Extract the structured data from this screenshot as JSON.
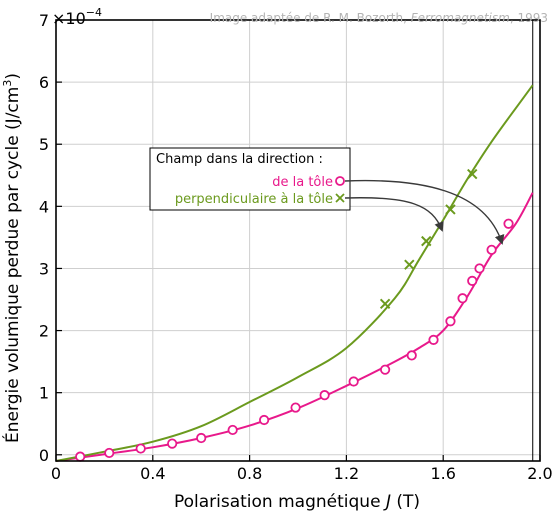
{
  "chart_data": {
    "type": "scatter",
    "xlabel_prefix": "Polarisation magnétique ",
    "xlabel_var": "J",
    "xlabel_unit": " (T)",
    "ylabel_main": "Énergie volumique perdue par cycle (J/cm",
    "ylabel_sup": "3",
    "ylabel_close": ")",
    "y_multiplier_base": "×10",
    "y_multiplier_exp": "−4",
    "credit_prefix": "Image adaptée de R. M. Bozorth, ",
    "credit_title": "Ferromagnetism",
    "credit_suffix": ", 1993",
    "xlim": [
      0,
      2.0
    ],
    "ylim": [
      -0.1,
      7
    ],
    "x_ticks": [
      0,
      0.4,
      0.8,
      1.2,
      1.6,
      2.0
    ],
    "x_tick_labels": [
      "0",
      "0.4",
      "0.8",
      "1.2",
      "1.6",
      "2.0"
    ],
    "y_ticks": [
      0,
      1,
      2,
      3,
      4,
      5,
      6,
      7
    ],
    "y_tick_labels": [
      "0",
      "1",
      "2",
      "3",
      "4",
      "5",
      "6",
      "7"
    ],
    "grid": true,
    "vertical_line_x": 1.97,
    "legend": {
      "title": "Champ dans la direction :",
      "placement": "center-left"
    },
    "series": [
      {
        "name": "de la tôle",
        "color": "#e8198b",
        "marker": "circle",
        "points": [
          [
            0.1,
            -0.03
          ],
          [
            0.22,
            0.03
          ],
          [
            0.35,
            0.1
          ],
          [
            0.48,
            0.18
          ],
          [
            0.6,
            0.27
          ],
          [
            0.73,
            0.4
          ],
          [
            0.86,
            0.56
          ],
          [
            0.99,
            0.76
          ],
          [
            1.11,
            0.96
          ],
          [
            1.23,
            1.18
          ],
          [
            1.36,
            1.37
          ],
          [
            1.47,
            1.6
          ],
          [
            1.56,
            1.85
          ],
          [
            1.63,
            2.15
          ],
          [
            1.68,
            2.52
          ],
          [
            1.72,
            2.8
          ],
          [
            1.75,
            3.0
          ],
          [
            1.8,
            3.3
          ],
          [
            1.87,
            3.72
          ]
        ],
        "fit": [
          [
            0.0,
            -0.1
          ],
          [
            0.2,
            0.01
          ],
          [
            0.4,
            0.12
          ],
          [
            0.6,
            0.27
          ],
          [
            0.8,
            0.47
          ],
          [
            1.0,
            0.75
          ],
          [
            1.2,
            1.11
          ],
          [
            1.4,
            1.5
          ],
          [
            1.5,
            1.72
          ],
          [
            1.6,
            2.0
          ],
          [
            1.7,
            2.55
          ],
          [
            1.8,
            3.22
          ],
          [
            1.9,
            3.72
          ],
          [
            1.97,
            4.22
          ]
        ]
      },
      {
        "name": "perpendiculaire à la tôle",
        "color": "#6b9a1e",
        "marker": "cross",
        "points": [
          [
            1.36,
            2.43
          ],
          [
            1.46,
            3.06
          ],
          [
            1.53,
            3.44
          ],
          [
            1.63,
            3.95
          ],
          [
            1.72,
            4.52
          ]
        ],
        "fit": [
          [
            0.0,
            -0.1
          ],
          [
            0.2,
            0.05
          ],
          [
            0.4,
            0.21
          ],
          [
            0.6,
            0.46
          ],
          [
            0.8,
            0.85
          ],
          [
            1.0,
            1.25
          ],
          [
            1.2,
            1.72
          ],
          [
            1.4,
            2.52
          ],
          [
            1.5,
            3.14
          ],
          [
            1.6,
            3.78
          ],
          [
            1.7,
            4.44
          ],
          [
            1.8,
            5.04
          ],
          [
            1.9,
            5.58
          ],
          [
            1.97,
            5.95
          ]
        ]
      }
    ]
  }
}
